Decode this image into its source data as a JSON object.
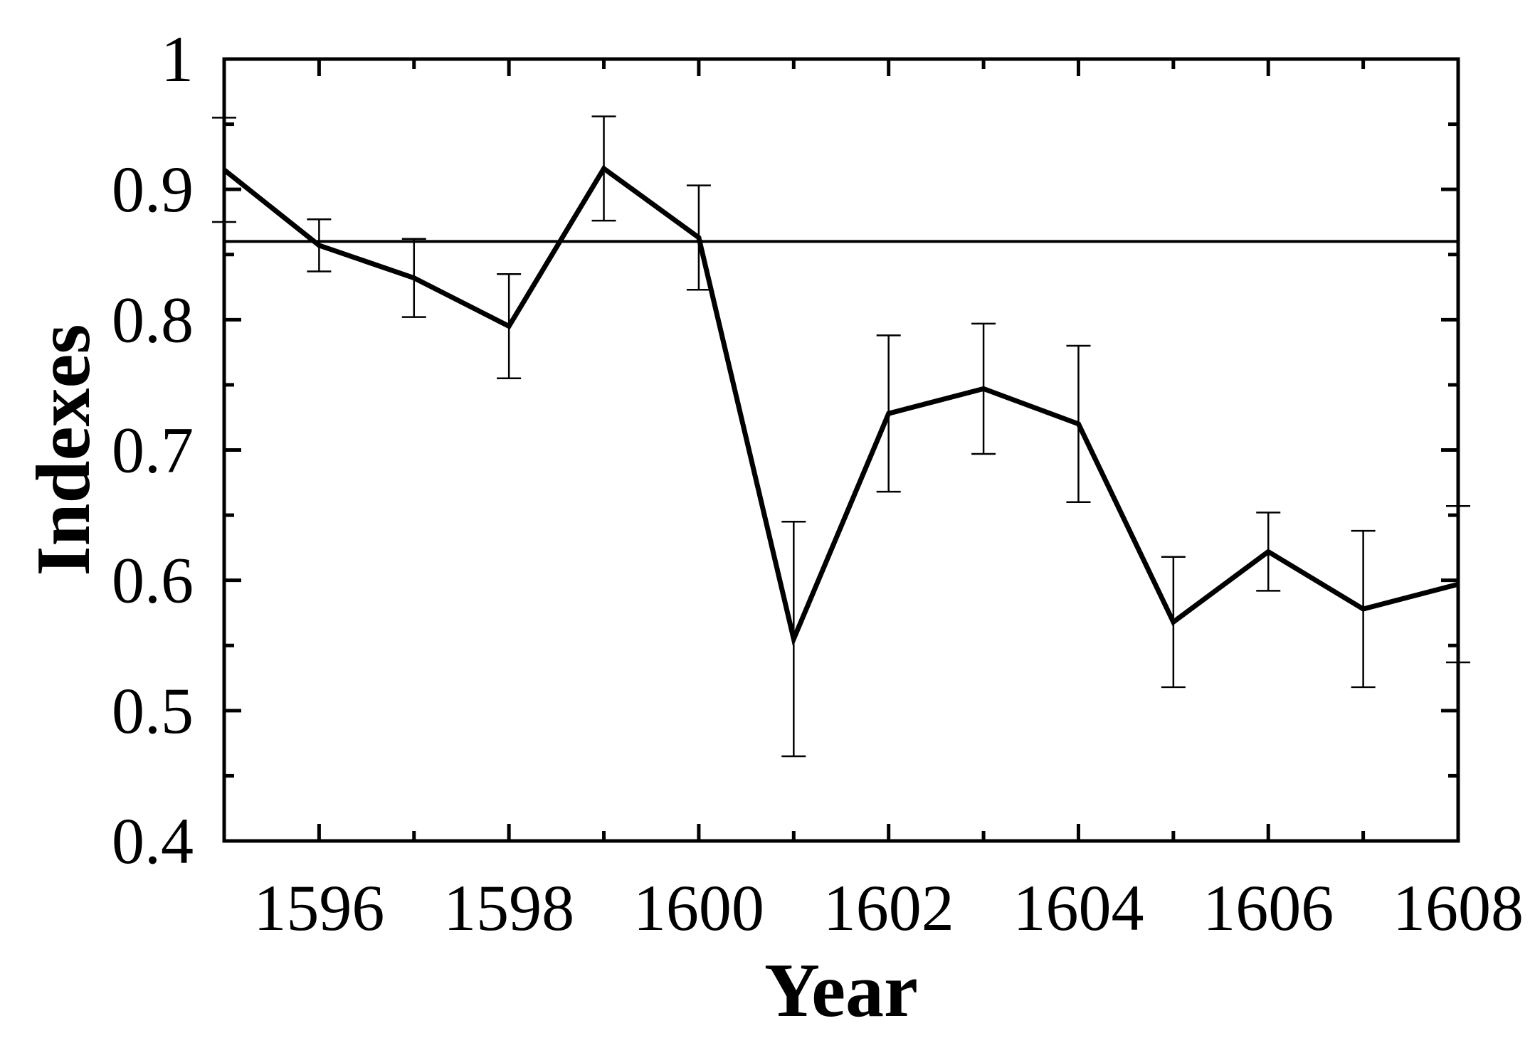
{
  "chart_data": {
    "type": "line",
    "title": "",
    "xlabel": "Year",
    "ylabel": "Indexes",
    "xlim": [
      1595,
      1608
    ],
    "ylim": [
      0.4,
      1.0
    ],
    "x_ticks": [
      1596,
      1598,
      1600,
      1602,
      1604,
      1606,
      1608
    ],
    "x_tick_labels": [
      "1596",
      "1598",
      "1600",
      "1602",
      "1604",
      "1606",
      "1608"
    ],
    "y_ticks": [
      0.4,
      0.5,
      0.6,
      0.7,
      0.8,
      0.9,
      1.0
    ],
    "y_tick_labels": [
      "0.4",
      "0.5",
      "0.6",
      "0.7",
      "0.8",
      "0.9",
      "1"
    ],
    "reference_line": 0.86,
    "grid": false,
    "legend": "none",
    "line_color": "#000000",
    "series": [
      {
        "x": [
          1595,
          1596,
          1597,
          1598,
          1599,
          1600,
          1601,
          1602,
          1603,
          1604,
          1605,
          1606,
          1607,
          1608
        ],
        "y": [
          0.915,
          0.857,
          0.832,
          0.795,
          0.916,
          0.863,
          0.555,
          0.728,
          0.747,
          0.72,
          0.568,
          0.622,
          0.578,
          0.597
        ],
        "error": [
          0.04,
          0.02,
          0.03,
          0.04,
          0.04,
          0.04,
          0.09,
          0.06,
          0.05,
          0.06,
          0.05,
          0.03,
          0.06,
          0.06
        ]
      }
    ]
  }
}
